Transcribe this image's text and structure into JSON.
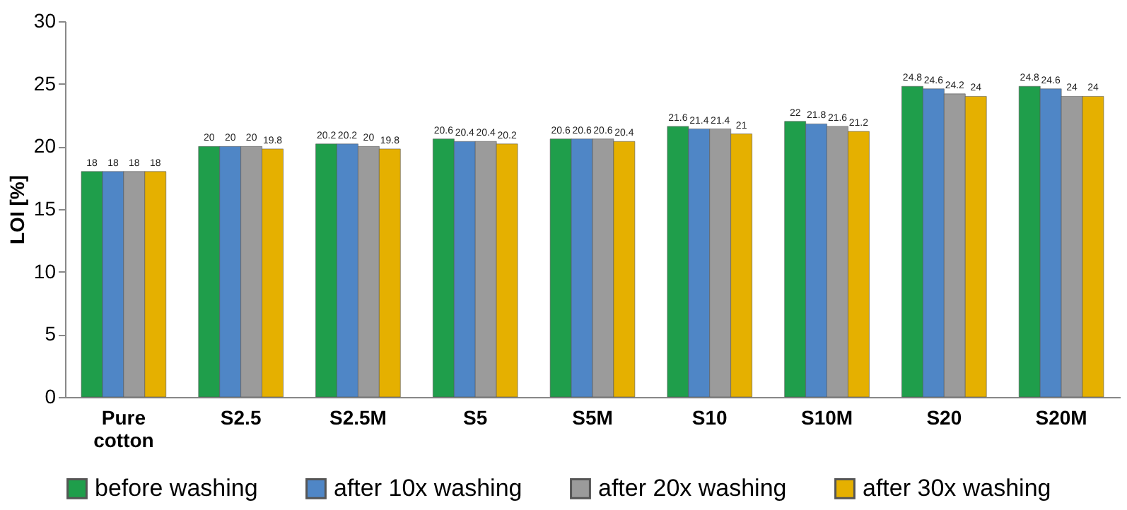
{
  "chart_data": {
    "type": "bar",
    "ylabel": "LOI [%]",
    "categories": [
      "Pure cotton",
      "S2.5",
      "S2.5M",
      "S5",
      "S5M",
      "S10",
      "S10M",
      "S20",
      "S20M"
    ],
    "series": [
      {
        "name": "before washing",
        "color": "#1f9e4b",
        "values": [
          18,
          20,
          20.2,
          20.6,
          20.6,
          21.6,
          22,
          24.8,
          24.8
        ]
      },
      {
        "name": "after 10x washing",
        "color": "#4f86c6",
        "values": [
          18,
          20,
          20.2,
          20.4,
          20.6,
          21.4,
          21.8,
          24.6,
          24.6
        ]
      },
      {
        "name": "after 20x washing",
        "color": "#9b9b9b",
        "values": [
          18,
          20,
          20,
          20.4,
          20.6,
          21.4,
          21.6,
          24.2,
          24
        ]
      },
      {
        "name": "after 30x washing",
        "color": "#e5b000",
        "values": [
          18,
          19.8,
          19.8,
          20.2,
          20.4,
          21,
          21.2,
          24,
          24
        ]
      }
    ],
    "ylim": [
      0,
      30
    ],
    "yticks": [
      0,
      5,
      10,
      15,
      20,
      25,
      30
    ],
    "grid": false,
    "legend": "bottom",
    "data_labels": true
  }
}
